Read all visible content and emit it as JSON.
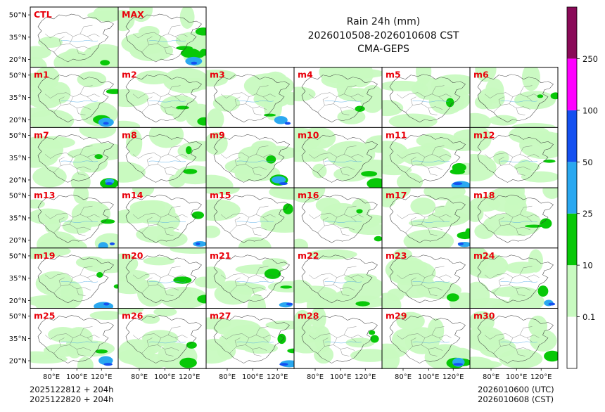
{
  "figure": {
    "title_line1": "Rain 24h (mm)",
    "title_line2": "2026010508-2026010608 CST",
    "title_line3": "CMA-GEPS",
    "footer_left_line1": "2025122812 + 204h",
    "footer_left_line2": "2025122820 + 204h",
    "footer_right_line1": "2026010600 (UTC)",
    "footer_right_line2": "2026010608 (CST)"
  },
  "chart_data": {
    "type": "map-panel-grid",
    "variable": "Rain 24h (mm)",
    "model": "CMA-GEPS",
    "valid_period": "2026010508-2026010608 CST",
    "panel_label_color": "#e8000b",
    "lat_ticks": [
      "50°N",
      "35°N",
      "20°N"
    ],
    "lon_ticks": [
      "80°E",
      "100°E",
      "120°E"
    ],
    "rows": [
      [
        "CTL",
        "MAX"
      ],
      [
        "m1",
        "m2",
        "m3",
        "m4",
        "m5",
        "m6"
      ],
      [
        "m7",
        "m8",
        "m9",
        "m10",
        "m11",
        "m12"
      ],
      [
        "m13",
        "m14",
        "m15",
        "m16",
        "m17",
        "m18"
      ],
      [
        "m19",
        "m20",
        "m21",
        "m22",
        "m23",
        "m24"
      ],
      [
        "m25",
        "m26",
        "m27",
        "m28",
        "m29",
        "m30"
      ]
    ],
    "colorbar": {
      "levels": [
        "0.1",
        "10",
        "25",
        "50",
        "100",
        "250"
      ],
      "colors": [
        "#ffffff",
        "#c8fac0",
        "#08c808",
        "#2aa8f0",
        "#1450f0",
        "#ff00ff",
        "#8a0a58"
      ]
    }
  }
}
